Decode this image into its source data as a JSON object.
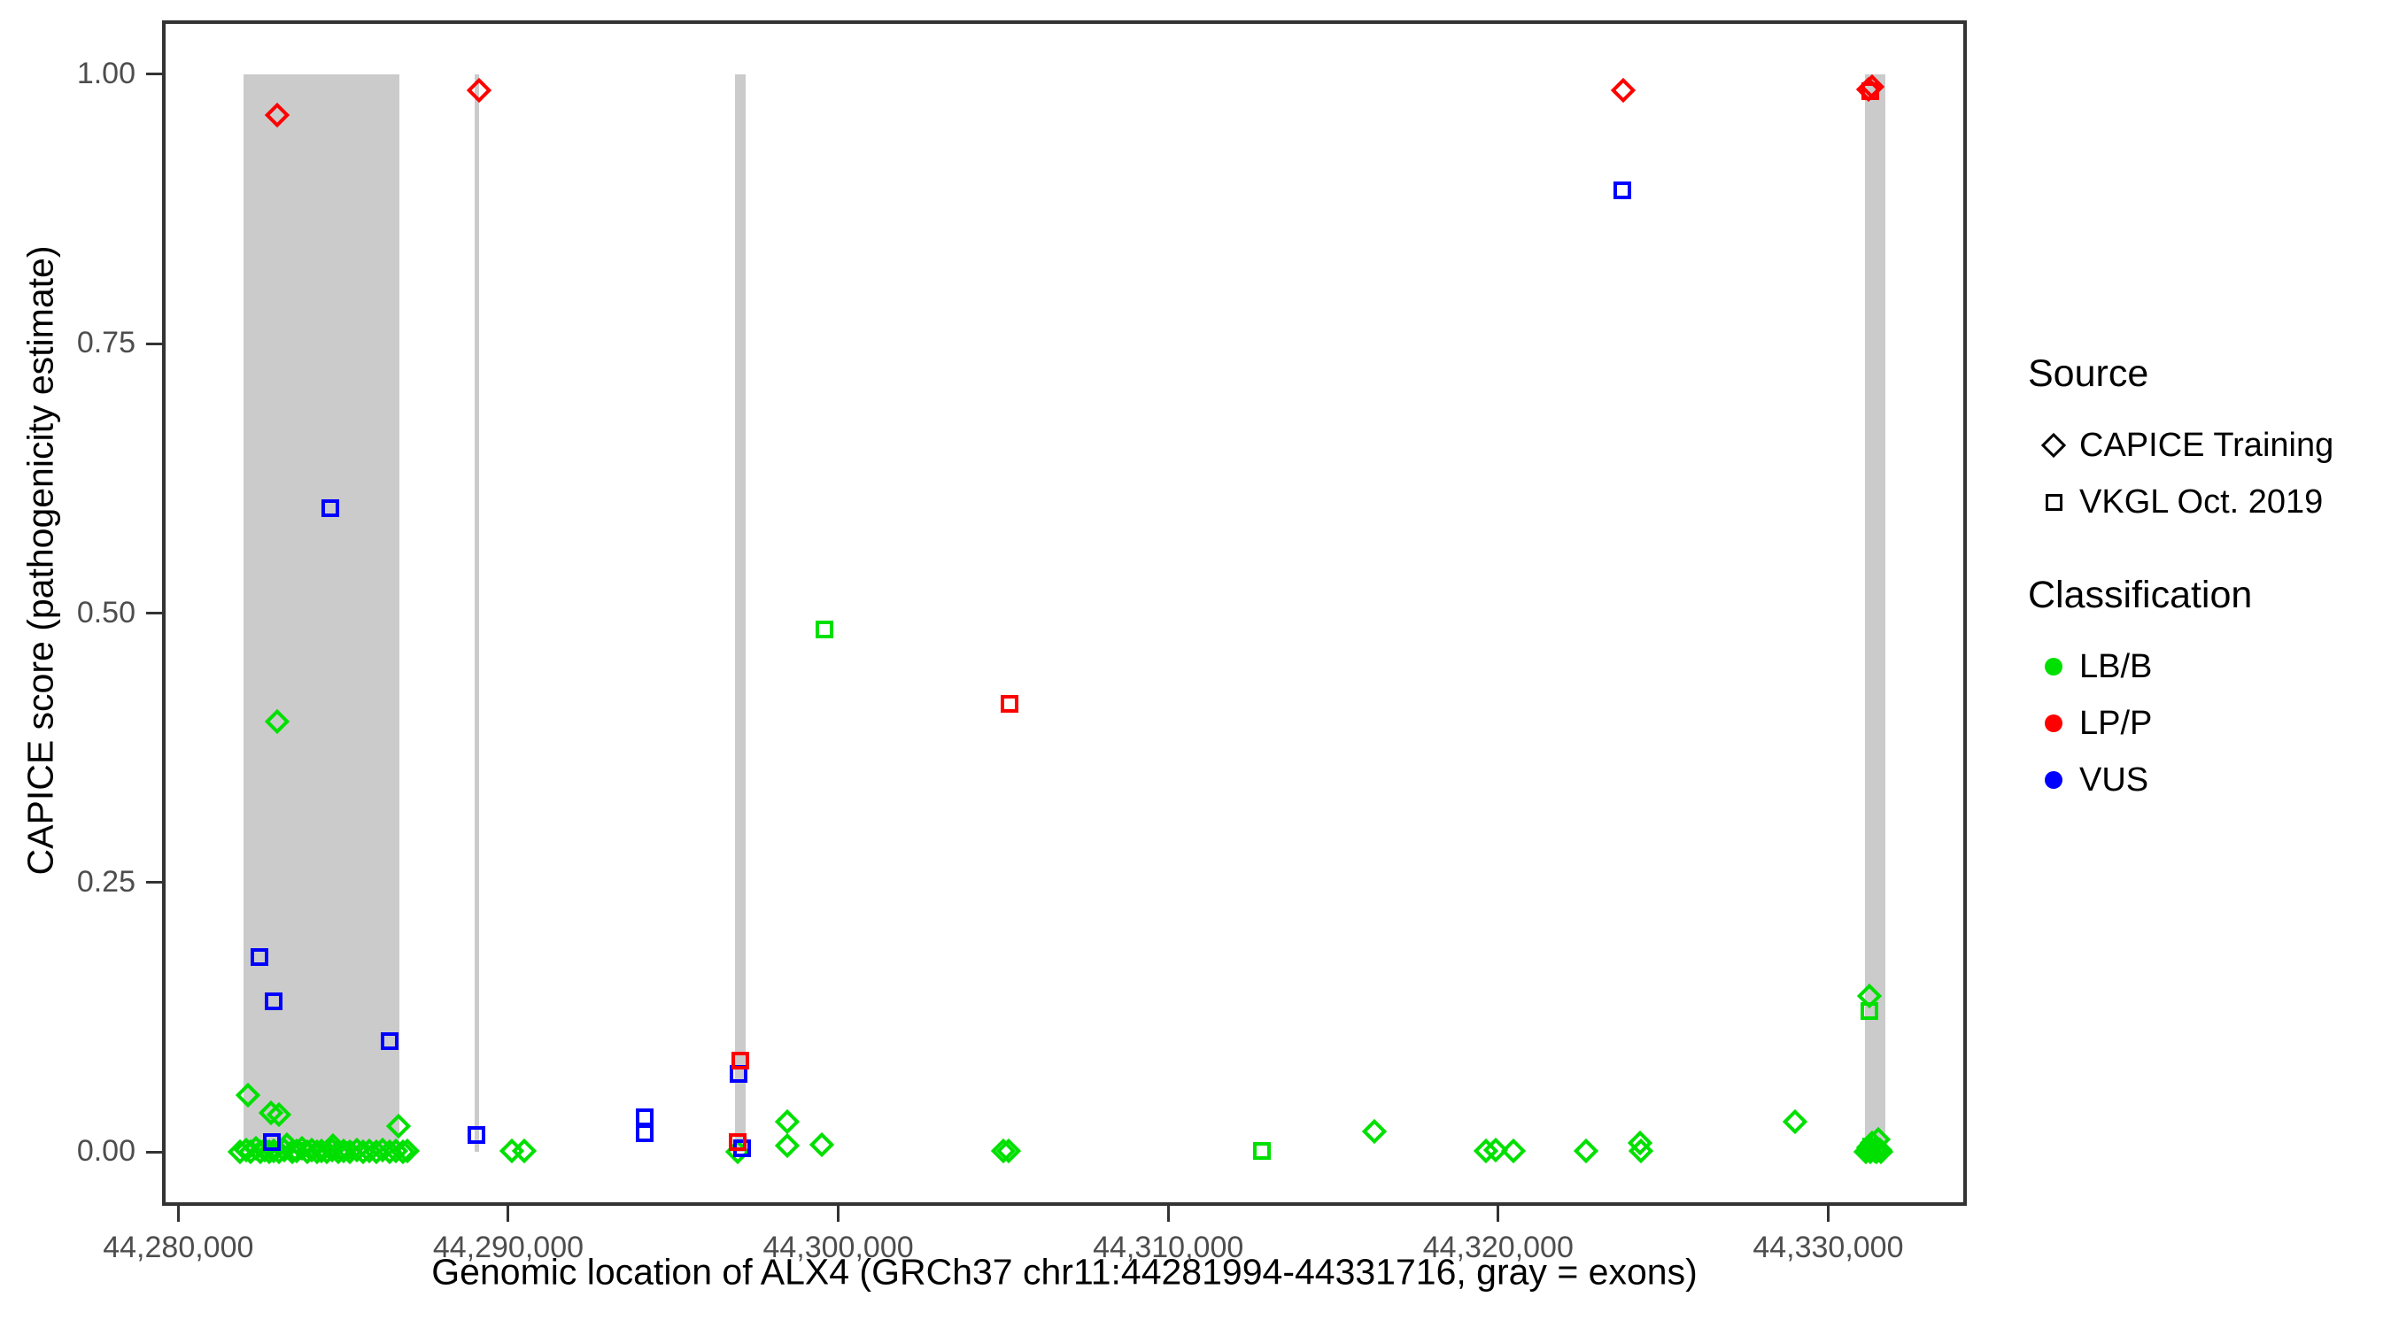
{
  "legend": {
    "source": {
      "title": "Source",
      "items": [
        {
          "label": "CAPICE Training",
          "marker": "diamond"
        },
        {
          "label": "VKGL Oct. 2019",
          "marker": "square"
        }
      ]
    },
    "classification": {
      "title": "Classification",
      "items": [
        {
          "label": "LB/B",
          "color": "#00E000"
        },
        {
          "label": "LP/P",
          "color": "#FF0000"
        },
        {
          "label": "VUS",
          "color": "#0000FF"
        }
      ]
    }
  },
  "chart_data": {
    "type": "scatter",
    "title": "",
    "xlabel": "Genomic location of ALX4 (GRCh37 chr11:44281994-44331716, gray = exons)",
    "ylabel": "CAPICE score (pathogenicity estimate)",
    "xlim": [
      44279508,
      44334202
    ],
    "ylim": [
      -0.05,
      1.05
    ],
    "x_ticks": [
      44280000,
      44290000,
      44300000,
      44310000,
      44320000,
      44330000
    ],
    "x_tick_labels": [
      "44,280,000",
      "44,290,000",
      "44,300,000",
      "44,310,000",
      "44,320,000",
      "44,330,000"
    ],
    "y_ticks": [
      0,
      0.25,
      0.5,
      0.75,
      1
    ],
    "y_tick_labels": [
      "0.00",
      "0.25",
      "0.50",
      "0.75",
      "1.00"
    ],
    "grid": false,
    "legend_position": "right",
    "class_colors": {
      "LB/B": "#00E000",
      "LP/P": "#FF0000",
      "VUS": "#0000FF"
    },
    "exons_note": "gray rectangles span score 0 to 1",
    "exons": [
      [
        44281967,
        44286711
      ],
      [
        44288989,
        44289110
      ],
      [
        44296867,
        44297181
      ],
      [
        44331117,
        44331720
      ]
    ],
    "series": [
      {
        "name": "CAPICE Training",
        "marker": "diamond",
        "points": [
          [
            44283000,
            0.962,
            "LP/P"
          ],
          [
            44289115,
            0.985,
            "LP/P"
          ],
          [
            44323783,
            0.985,
            "LP/P"
          ],
          [
            44331220,
            0.986,
            "LP/P"
          ],
          [
            44331340,
            0.988,
            "LP/P"
          ],
          [
            44283000,
            0.399,
            "LB/B"
          ],
          [
            44282110,
            0.053,
            "LB/B"
          ],
          [
            44282800,
            0.036,
            "LB/B"
          ],
          [
            44283040,
            0.035,
            "LB/B"
          ],
          [
            44286680,
            0.024,
            "LB/B"
          ],
          [
            44331258,
            0.145,
            "LB/B"
          ],
          [
            44329000,
            0.028,
            "LB/B"
          ],
          [
            44316238,
            0.019,
            "LB/B"
          ],
          [
            44298456,
            0.028,
            "LB/B"
          ],
          [
            44298456,
            0.006,
            "LB/B"
          ],
          [
            44299501,
            0.007,
            "LB/B"
          ],
          [
            44290114,
            0.001,
            "LB/B"
          ],
          [
            44290497,
            0.001,
            "LB/B"
          ],
          [
            44296947,
            0.0,
            "LB/B"
          ],
          [
            44304998,
            0.001,
            "LB/B"
          ],
          [
            44305151,
            0.001,
            "LB/B"
          ],
          [
            44319617,
            0.001,
            "LB/B"
          ],
          [
            44319931,
            0.002,
            "LB/B"
          ],
          [
            44320467,
            0.001,
            "LB/B"
          ],
          [
            44322657,
            0.001,
            "LB/B"
          ],
          [
            44324300,
            0.008,
            "LB/B"
          ],
          [
            44324330,
            0.001,
            "LB/B"
          ],
          [
            44281870,
            0.0,
            "LB/B"
          ],
          [
            44282050,
            0.002,
            "LB/B"
          ],
          [
            44282200,
            0.0,
            "LB/B"
          ],
          [
            44282350,
            0.003,
            "LB/B"
          ],
          [
            44282480,
            0.0,
            "LB/B"
          ],
          [
            44282620,
            0.002,
            "LB/B"
          ],
          [
            44282760,
            0.0,
            "LB/B"
          ],
          [
            44282900,
            0.001,
            "LB/B"
          ],
          [
            44283050,
            0.0,
            "LB/B"
          ],
          [
            44283200,
            0.002,
            "LB/B"
          ],
          [
            44283300,
            0.007,
            "LB/B"
          ],
          [
            44283450,
            0.0,
            "LB/B"
          ],
          [
            44283600,
            0.001,
            "LB/B"
          ],
          [
            44283750,
            0.003,
            "LB/B"
          ],
          [
            44283900,
            0.0,
            "LB/B"
          ],
          [
            44284050,
            0.002,
            "LB/B"
          ],
          [
            44284200,
            0.0,
            "LB/B"
          ],
          [
            44284350,
            0.001,
            "LB/B"
          ],
          [
            44284500,
            0.0,
            "LB/B"
          ],
          [
            44284650,
            0.002,
            "LB/B"
          ],
          [
            44284700,
            0.006,
            "LB/B"
          ],
          [
            44284850,
            0.0,
            "LB/B"
          ],
          [
            44285000,
            0.001,
            "LB/B"
          ],
          [
            44285200,
            0.0,
            "LB/B"
          ],
          [
            44285400,
            0.002,
            "LB/B"
          ],
          [
            44285600,
            0.0,
            "LB/B"
          ],
          [
            44285800,
            0.001,
            "LB/B"
          ],
          [
            44286000,
            0.0,
            "LB/B"
          ],
          [
            44286200,
            0.002,
            "LB/B"
          ],
          [
            44286400,
            0.0,
            "LB/B"
          ],
          [
            44286600,
            0.001,
            "LB/B"
          ],
          [
            44286800,
            0.0,
            "LB/B"
          ],
          [
            44286950,
            0.001,
            "LB/B"
          ],
          [
            44331150,
            0.0,
            "LB/B"
          ],
          [
            44331220,
            0.004,
            "LB/B"
          ],
          [
            44331280,
            0.0,
            "LB/B"
          ],
          [
            44331340,
            0.008,
            "LB/B"
          ],
          [
            44331400,
            0.001,
            "LB/B"
          ],
          [
            44331460,
            0.0,
            "LB/B"
          ],
          [
            44331510,
            0.012,
            "LB/B"
          ],
          [
            44331560,
            0.002,
            "LB/B"
          ],
          [
            44331610,
            0.0,
            "LB/B"
          ]
        ]
      },
      {
        "name": "VKGL Oct. 2019",
        "marker": "square",
        "points": [
          [
            44284594,
            0.597,
            "VUS"
          ],
          [
            44282450,
            0.181,
            "VUS"
          ],
          [
            44282886,
            0.14,
            "VUS"
          ],
          [
            44286416,
            0.103,
            "VUS"
          ],
          [
            44282843,
            0.009,
            "VUS"
          ],
          [
            44289023,
            0.016,
            "VUS"
          ],
          [
            44294127,
            0.032,
            "VUS"
          ],
          [
            44294127,
            0.017,
            "VUS"
          ],
          [
            44296984,
            0.072,
            "VUS"
          ],
          [
            44297091,
            0.003,
            "VUS"
          ],
          [
            44323767,
            0.892,
            "VUS"
          ],
          [
            44297021,
            0.085,
            "LP/P"
          ],
          [
            44296957,
            0.009,
            "LP/P"
          ],
          [
            44305194,
            0.416,
            "LP/P"
          ],
          [
            44331290,
            0.984,
            "LP/P"
          ],
          [
            44299574,
            0.485,
            "LB/B"
          ],
          [
            44312834,
            0.001,
            "LB/B"
          ],
          [
            44283600,
            0.001,
            "LB/B"
          ],
          [
            44285000,
            0.002,
            "LB/B"
          ],
          [
            44331300,
            0.005,
            "LB/B"
          ],
          [
            44331258,
            0.131,
            "LB/B"
          ]
        ]
      }
    ]
  }
}
